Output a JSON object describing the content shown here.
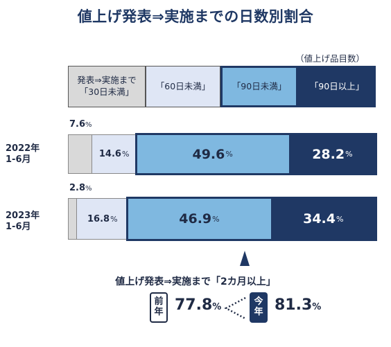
{
  "title": "値上げ発表⇒実施までの日数別割合",
  "unit_note": "（値上げ品目数）",
  "legend": [
    {
      "line1": "発表⇒実施まで",
      "line2": "「30日未満」"
    },
    {
      "line1": "「60日未満」",
      "line2": ""
    },
    {
      "line1": "「90日未満」",
      "line2": ""
    },
    {
      "line1": "「90日以上」",
      "line2": ""
    }
  ],
  "colors": {
    "c30": "#d9d9d9",
    "c60": "#dfe6f5",
    "c90": "#7fb8e0",
    "c90plus": "#1f3864",
    "frame": "#1f3864"
  },
  "percent_sign": "%",
  "chart_data": {
    "type": "bar",
    "orientation": "horizontal-stacked-100",
    "title": "値上げ発表⇒実施までの日数別割合",
    "categories": [
      "2022年 1-6月",
      "2023年 1-6月"
    ],
    "category_lines": [
      [
        "2022年",
        "1-6月"
      ],
      [
        "2023年",
        "1-6月"
      ]
    ],
    "series": [
      {
        "name": "発表⇒実施まで「30日未満」",
        "values": [
          7.6,
          2.8
        ]
      },
      {
        "name": "「60日未満」",
        "values": [
          14.6,
          16.8
        ]
      },
      {
        "name": "「90日未満」",
        "values": [
          49.6,
          46.9
        ]
      },
      {
        "name": "「90日以上」",
        "values": [
          28.2,
          34.4
        ]
      }
    ],
    "value_labels": [
      [
        "7.6",
        "14.6",
        "49.6",
        "28.2"
      ],
      [
        "2.8",
        "16.8",
        "46.9",
        "34.4"
      ]
    ]
  },
  "summary": {
    "title": "値上げ発表⇒実施まで「2カ月以上」",
    "prev_badge": [
      "前",
      "年"
    ],
    "prev_value": "77.8",
    "curr_badge": [
      "今",
      "年"
    ],
    "curr_value": "81.3"
  }
}
